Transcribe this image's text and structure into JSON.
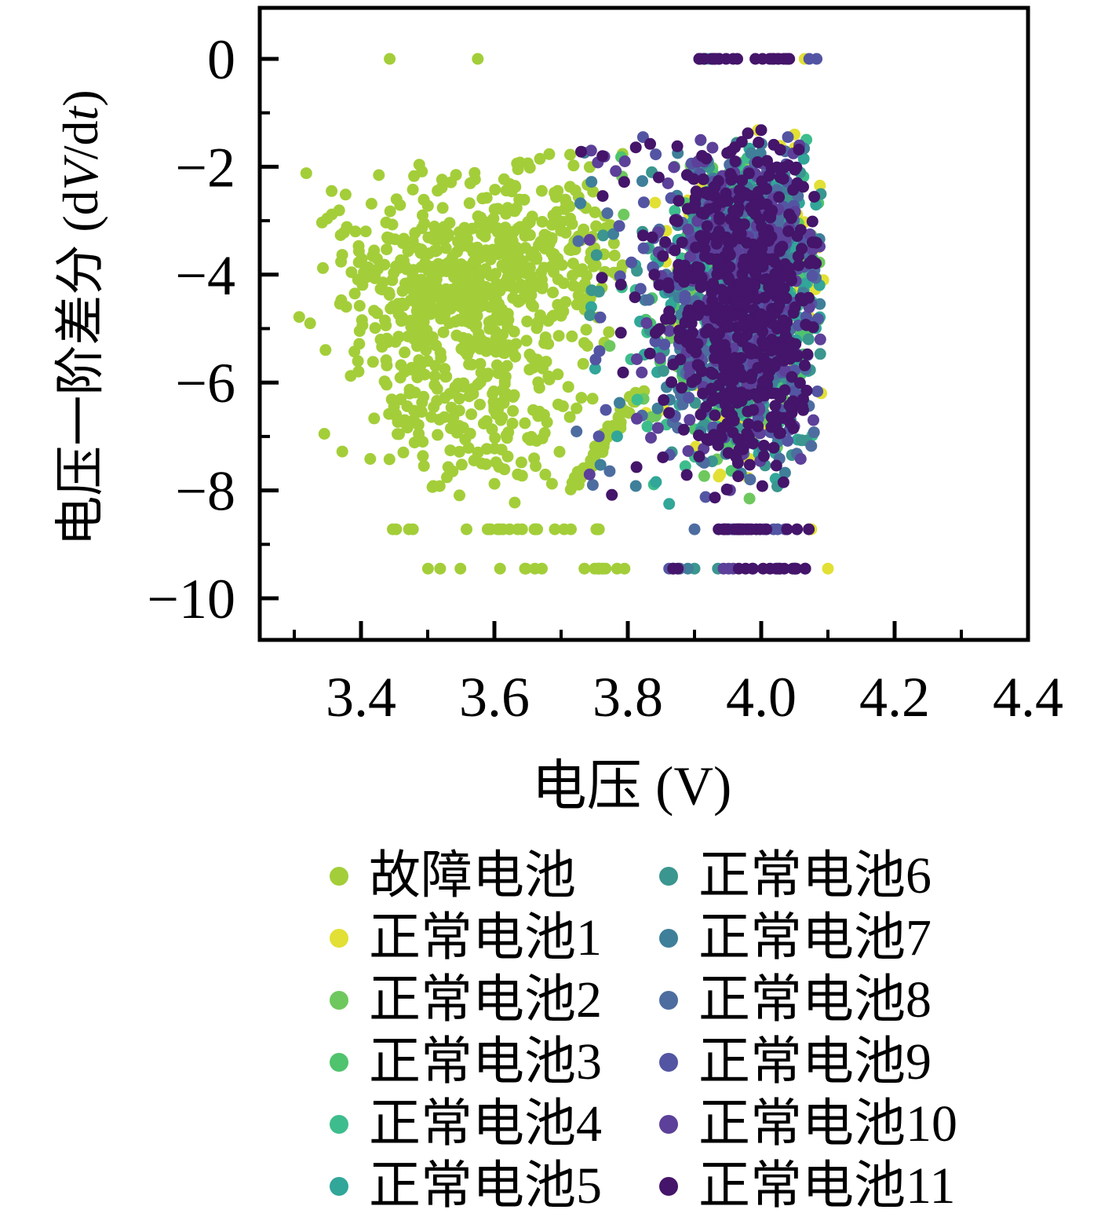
{
  "figure": {
    "background": "#ffffff",
    "spine_color": "#000000"
  },
  "chart_data": {
    "type": "scatter",
    "title": "",
    "xlabel": "电压 (V)",
    "ylabel": "电压一阶差分 (dV/dt)",
    "ylabel_parts": {
      "p1": "电压一阶差分 (d",
      "v": "V",
      "p2": "/d",
      "t": "t",
      "p3": ")"
    },
    "xlim": [
      3.25,
      4.4
    ],
    "ylim": [
      -10.77,
      0.95
    ],
    "grid": false,
    "legend_position": "below",
    "marker_radius_px": 7.5,
    "legend_marker_radius_px": 12,
    "seed": 1234567,
    "x_major_ticks": [
      3.4,
      3.6,
      3.8,
      4.0,
      4.2,
      4.4
    ],
    "x_major_labels": [
      "3.4",
      "3.6",
      "3.8",
      "4.0",
      "4.2",
      "4.4"
    ],
    "x_minor_ticks": [
      3.3,
      3.5,
      3.7,
      3.9,
      4.1,
      4.3
    ],
    "y_major_ticks": [
      0,
      -2,
      -4,
      -6,
      -8,
      -10
    ],
    "y_major_labels": [
      "0",
      "−2",
      "−4",
      "−6",
      "−8",
      "−10"
    ],
    "y_minor_ticks": [
      -1,
      -3,
      -5,
      -7,
      -9
    ],
    "series": [
      {
        "name": "故障电池",
        "color": "#a3ce39",
        "generators": [
          {
            "type": "gauss",
            "n": 560,
            "cx": 3.553,
            "cy": -4.15,
            "sx": 0.092,
            "sy": 0.92,
            "clip": [
              3.305,
              3.795,
              -6.7,
              -1.75
            ]
          },
          {
            "type": "gauss",
            "n": 100,
            "cx": 3.7,
            "cy": -3.1,
            "sx": 0.055,
            "sy": 0.85,
            "clip": [
              3.585,
              3.805,
              -5.6,
              -1.75
            ]
          },
          {
            "type": "gauss",
            "n": 140,
            "cx": 3.565,
            "cy": -6.4,
            "sx": 0.1,
            "sy": 0.75,
            "clip": [
              3.39,
              3.77,
              -8.25,
              -5.0
            ]
          },
          {
            "type": "uniform",
            "n": 28,
            "xr": [
              3.43,
              3.7
            ],
            "yr": [
              -7.95,
              -6.2
            ]
          },
          {
            "type": "hband",
            "n": 24,
            "y": -8.72,
            "xr": [
              3.445,
              3.79
            ],
            "clumps": 6
          },
          {
            "type": "hband",
            "n": 18,
            "y": -9.45,
            "xr": [
              3.47,
              3.795
            ],
            "clumps": 5
          },
          {
            "type": "streak",
            "n": 55,
            "from": [
              3.716,
              -7.98
            ],
            "to": [
              3.814,
              -6.22
            ],
            "jx": 0.005,
            "jy": 0.09
          },
          {
            "type": "points",
            "pts": [
              [
                3.443,
                0
              ],
              [
                3.575,
                0
              ],
              [
                3.318,
                -2.12
              ],
              [
                3.356,
                -2.45
              ],
              [
                3.345,
                -6.95
              ],
              [
                3.372,
                -7.28
              ]
            ]
          }
        ]
      },
      {
        "name": "正常电池1",
        "color": "#e2e035",
        "generators": [
          {
            "type": "gauss",
            "n": 150,
            "cx": 3.973,
            "cy": -4.25,
            "sx": 0.06,
            "sy": 1.5,
            "clip": [
              3.715,
              4.09,
              -8.25,
              -1.45
            ]
          },
          {
            "type": "points",
            "pts": [
              [
                3.845,
                -6.55
              ],
              [
                3.995,
                -1.32
              ],
              [
                4.05,
                -1.4
              ],
              [
                4.088,
                -2.35
              ],
              [
                4.093,
                -4.1
              ],
              [
                4.09,
                -6.2
              ],
              [
                4.065,
                0
              ],
              [
                4.1,
                -9.45
              ],
              [
                4.075,
                -8.72
              ],
              [
                3.92,
                -6.6
              ],
              [
                3.862,
                -5.05
              ]
            ]
          }
        ]
      },
      {
        "name": "正常电池2",
        "color": "#6ec85e",
        "generators": [
          {
            "type": "gauss",
            "n": 140,
            "cx": 3.973,
            "cy": -4.25,
            "sx": 0.06,
            "sy": 1.5,
            "clip": [
              3.715,
              4.09,
              -8.25,
              -1.45
            ]
          },
          {
            "type": "uniform",
            "n": 6,
            "xr": [
              3.73,
              3.87
            ],
            "yr": [
              -7.6,
              -2.0
            ]
          }
        ]
      },
      {
        "name": "正常电池3",
        "color": "#4fc36e",
        "generators": [
          {
            "type": "gauss",
            "n": 140,
            "cx": 3.973,
            "cy": -4.25,
            "sx": 0.06,
            "sy": 1.5,
            "clip": [
              3.715,
              4.09,
              -8.25,
              -1.45
            ]
          },
          {
            "type": "points",
            "pts": [
              [
                3.79,
                -1.82
              ],
              [
                3.87,
                -2.0
              ],
              [
                3.845,
                -3.2
              ]
            ]
          }
        ]
      },
      {
        "name": "正常电池4",
        "color": "#3dbd8d",
        "generators": [
          {
            "type": "gauss",
            "n": 145,
            "cx": 3.973,
            "cy": -4.25,
            "sx": 0.06,
            "sy": 1.5,
            "clip": [
              3.715,
              4.09,
              -8.25,
              -1.45
            ]
          },
          {
            "type": "uniform",
            "n": 6,
            "xr": [
              3.74,
              3.87
            ],
            "yr": [
              -7.0,
              -2.2
            ]
          },
          {
            "type": "points",
            "pts": [
              [
                3.908,
                0
              ],
              [
                3.921,
                0
              ]
            ]
          }
        ]
      },
      {
        "name": "正常电池5",
        "color": "#31a699",
        "generators": [
          {
            "type": "gauss",
            "n": 150,
            "cx": 3.973,
            "cy": -4.25,
            "sx": 0.06,
            "sy": 1.5,
            "clip": [
              3.715,
              4.09,
              -8.25,
              -1.45
            ]
          },
          {
            "type": "uniform",
            "n": 8,
            "xr": [
              3.73,
              3.88
            ],
            "yr": [
              -8.0,
              -2.0
            ]
          },
          {
            "type": "points",
            "pts": [
              [
                3.862,
                -8.25
              ]
            ]
          }
        ]
      },
      {
        "name": "正常电池6",
        "color": "#3a968f",
        "generators": [
          {
            "type": "gauss",
            "n": 150,
            "cx": 3.973,
            "cy": -4.25,
            "sx": 0.06,
            "sy": 1.5,
            "clip": [
              3.715,
              4.09,
              -8.25,
              -1.45
            ]
          },
          {
            "type": "uniform",
            "n": 8,
            "xr": [
              3.72,
              3.88
            ],
            "yr": [
              -8.0,
              -1.9
            ]
          },
          {
            "type": "points",
            "pts": [
              [
                3.9,
                -9.45
              ],
              [
                3.935,
                -9.45
              ],
              [
                3.882,
                -5.8
              ]
            ]
          }
        ]
      },
      {
        "name": "正常电池7",
        "color": "#3f7f9a",
        "generators": [
          {
            "type": "gauss",
            "n": 155,
            "cx": 3.973,
            "cy": -4.25,
            "sx": 0.06,
            "sy": 1.5,
            "clip": [
              3.715,
              4.09,
              -8.25,
              -1.45
            ]
          },
          {
            "type": "uniform",
            "n": 10,
            "xr": [
              3.72,
              3.88
            ],
            "yr": [
              -8.1,
              -1.8
            ]
          },
          {
            "type": "points",
            "pts": [
              [
                3.735,
                -1.74
              ],
              [
                3.89,
                -9.45
              ]
            ]
          }
        ]
      },
      {
        "name": "正常电池8",
        "color": "#4d6da0",
        "generators": [
          {
            "type": "gauss",
            "n": 160,
            "cx": 3.973,
            "cy": -4.25,
            "sx": 0.06,
            "sy": 1.5,
            "clip": [
              3.715,
              4.09,
              -8.25,
              -1.45
            ]
          },
          {
            "type": "uniform",
            "n": 10,
            "xr": [
              3.72,
              3.88
            ],
            "yr": [
              -8.1,
              -1.9
            ]
          },
          {
            "type": "points",
            "pts": [
              [
                3.925,
                0
              ],
              [
                3.9,
                -8.72
              ],
              [
                3.878,
                -9.45
              ]
            ]
          }
        ]
      },
      {
        "name": "正常电池9",
        "color": "#5355a3",
        "generators": [
          {
            "type": "gauss",
            "n": 165,
            "cx": 3.973,
            "cy": -4.25,
            "sx": 0.06,
            "sy": 1.5,
            "clip": [
              3.715,
              4.09,
              -8.25,
              -1.45
            ]
          },
          {
            "type": "uniform",
            "n": 10,
            "xr": [
              3.72,
              3.88
            ],
            "yr": [
              -8.0,
              -1.8
            ]
          },
          {
            "type": "hband",
            "n": 6,
            "y": -8.72,
            "xr": [
              3.93,
              4.075
            ],
            "clumps": 3
          },
          {
            "type": "points",
            "pts": [
              [
                4.072,
                0
              ],
              [
                4.083,
                0
              ],
              [
                3.862,
                -9.45
              ],
              [
                4.04,
                -1.45
              ]
            ]
          }
        ]
      },
      {
        "name": "正常电池10",
        "color": "#5c4099",
        "generators": [
          {
            "type": "gauss",
            "n": 175,
            "cx": 3.973,
            "cy": -4.25,
            "sx": 0.06,
            "sy": 1.5,
            "clip": [
              3.715,
              4.09,
              -8.25,
              -1.45
            ]
          },
          {
            "type": "uniform",
            "n": 8,
            "xr": [
              3.72,
              3.88
            ],
            "yr": [
              -8.0,
              -1.8
            ]
          },
          {
            "type": "hband",
            "n": 5,
            "y": -9.45,
            "xr": [
              3.9,
              4.06
            ],
            "clumps": 3
          },
          {
            "type": "points",
            "pts": [
              [
                3.755,
                -1.92
              ],
              [
                3.782,
                -2.08
              ],
              [
                3.745,
                -1.7
              ]
            ]
          }
        ]
      },
      {
        "name": "正常电池11",
        "color": "#44156a",
        "generators": [
          {
            "type": "gauss",
            "n": 420,
            "cx": 3.973,
            "cy": -4.25,
            "sx": 0.062,
            "sy": 1.5,
            "clip": [
              3.72,
              4.088,
              -8.3,
              -1.5
            ]
          },
          {
            "type": "gauss",
            "n": 90,
            "cx": 3.99,
            "cy": -6.2,
            "sx": 0.045,
            "sy": 0.8,
            "clip": [
              3.88,
              4.07,
              -8.3,
              -4.5
            ]
          },
          {
            "type": "hband",
            "n": 26,
            "y": 0,
            "xr": [
              3.907,
              4.068
            ],
            "clumps": 4
          },
          {
            "type": "hband",
            "n": 20,
            "y": -8.72,
            "xr": [
              3.903,
              4.088
            ],
            "clumps": 4
          },
          {
            "type": "hband",
            "n": 18,
            "y": -9.45,
            "xr": [
              3.868,
              4.092
            ],
            "clumps": 4
          },
          {
            "type": "uniform",
            "n": 12,
            "xr": [
              3.725,
              3.878
            ],
            "yr": [
              -8.1,
              -1.6
            ]
          },
          {
            "type": "points",
            "pts": [
              [
                3.73,
                -1.72
              ],
              [
                3.762,
                -1.8
              ],
              [
                3.812,
                -1.64
              ],
              [
                3.98,
                -1.38
              ],
              [
                4.0,
                -1.32
              ],
              [
                3.996,
                -1.55
              ],
              [
                3.958,
                0
              ],
              [
                3.93,
                0
              ],
              [
                4.002,
                0
              ]
            ]
          }
        ]
      }
    ]
  },
  "legend": {
    "items": [
      {
        "label": "故障电池",
        "color": "#a3ce39"
      },
      {
        "label": "正常电池1",
        "color": "#e2e035"
      },
      {
        "label": "正常电池2",
        "color": "#6ec85e"
      },
      {
        "label": "正常电池3",
        "color": "#4fc36e"
      },
      {
        "label": "正常电池4",
        "color": "#3dbd8d"
      },
      {
        "label": "正常电池5",
        "color": "#31a699"
      },
      {
        "label": "正常电池6",
        "color": "#3a968f"
      },
      {
        "label": "正常电池7",
        "color": "#3f7f9a"
      },
      {
        "label": "正常电池8",
        "color": "#4d6da0"
      },
      {
        "label": "正常电池9",
        "color": "#5355a3"
      },
      {
        "label": "正常电池10",
        "color": "#5c4099"
      },
      {
        "label": "正常电池11",
        "color": "#44156a"
      }
    ]
  }
}
